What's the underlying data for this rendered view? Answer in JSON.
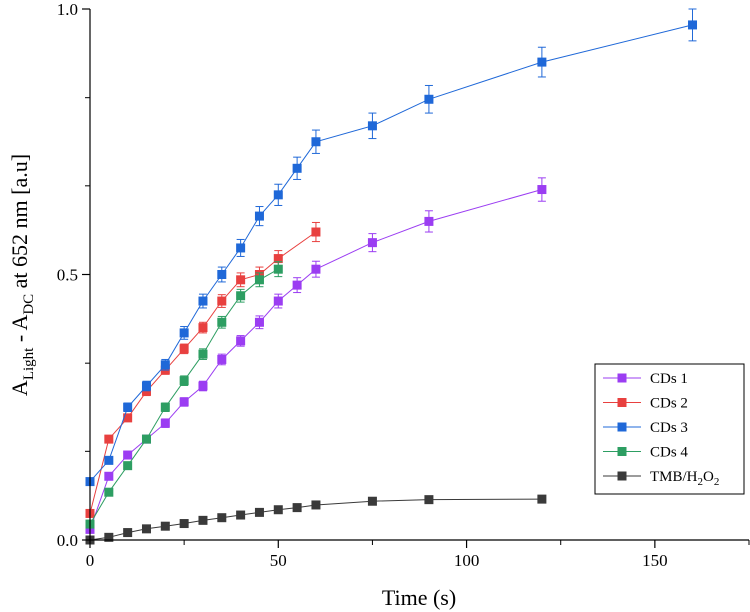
{
  "chart_data": {
    "type": "line",
    "title": "",
    "xlabel": "Time (s)",
    "ylabel": {
      "A1": "A",
      "sub1": "Light",
      "mid": " - A",
      "sub2": "DC",
      "tail": " at 652 nm [a.u]"
    },
    "xlim": [
      0,
      175
    ],
    "ylim": [
      0,
      1.0
    ],
    "x_ticks": [
      {
        "v": 0,
        "label": "0"
      },
      {
        "v": 50,
        "label": "50"
      },
      {
        "v": 100,
        "label": "100"
      },
      {
        "v": 150,
        "label": "150"
      }
    ],
    "x_minor": [
      25,
      75,
      125,
      175
    ],
    "y_ticks": [
      {
        "v": 0,
        "label": "0.0"
      },
      {
        "v": 0.5,
        "label": "0.5"
      },
      {
        "v": 1.0,
        "label": "1.0"
      }
    ],
    "y_minor": [
      0.167,
      0.333,
      0.667,
      0.833
    ],
    "legend_position": "bottom-right",
    "series": [
      {
        "name": "CDs 1",
        "color": "#9b3df2",
        "x": [
          0,
          5,
          10,
          15,
          20,
          25,
          30,
          35,
          40,
          45,
          50,
          55,
          60,
          75,
          90,
          120
        ],
        "y": [
          0.02,
          0.12,
          0.16,
          0.19,
          0.22,
          0.26,
          0.29,
          0.34,
          0.375,
          0.41,
          0.45,
          0.48,
          0.51,
          0.56,
          0.6,
          0.66
        ],
        "err": [
          0.005,
          0.006,
          0.007,
          0.007,
          0.008,
          0.008,
          0.009,
          0.01,
          0.01,
          0.012,
          0.013,
          0.014,
          0.015,
          0.017,
          0.02,
          0.022
        ]
      },
      {
        "name": "CDs 2",
        "color": "#e8403f",
        "x": [
          0,
          5,
          10,
          15,
          20,
          25,
          30,
          35,
          40,
          45,
          50,
          60
        ],
        "y": [
          0.05,
          0.19,
          0.23,
          0.28,
          0.32,
          0.36,
          0.4,
          0.45,
          0.49,
          0.5,
          0.53,
          0.58
        ],
        "err": [
          0.005,
          0.006,
          0.007,
          0.008,
          0.008,
          0.009,
          0.01,
          0.012,
          0.013,
          0.014,
          0.015,
          0.018
        ]
      },
      {
        "name": "CDs 3",
        "color": "#1f68d8",
        "x": [
          0,
          5,
          10,
          15,
          20,
          25,
          30,
          35,
          40,
          45,
          50,
          55,
          60,
          75,
          90,
          120,
          160
        ],
        "y": [
          0.11,
          0.15,
          0.25,
          0.29,
          0.33,
          0.39,
          0.45,
          0.5,
          0.55,
          0.61,
          0.65,
          0.7,
          0.75,
          0.78,
          0.83,
          0.9,
          0.97
        ],
        "err": [
          0.005,
          0.007,
          0.008,
          0.009,
          0.01,
          0.012,
          0.013,
          0.014,
          0.016,
          0.018,
          0.02,
          0.021,
          0.022,
          0.024,
          0.026,
          0.028,
          0.03
        ]
      },
      {
        "name": "CDs 4",
        "color": "#2d9e62",
        "x": [
          0,
          5,
          10,
          15,
          20,
          25,
          30,
          35,
          40,
          45,
          50
        ],
        "y": [
          0.03,
          0.09,
          0.14,
          0.19,
          0.25,
          0.3,
          0.35,
          0.41,
          0.46,
          0.49,
          0.51
        ],
        "err": [
          0.004,
          0.005,
          0.006,
          0.007,
          0.008,
          0.009,
          0.01,
          0.011,
          0.012,
          0.013,
          0.014
        ]
      },
      {
        "name": "TMB/H2O2",
        "color": "#3a3a3a",
        "legend": {
          "base": "TMB/H",
          "sub1": "2",
          "mid": "O",
          "sub2": "2"
        },
        "x": [
          0,
          5,
          10,
          15,
          20,
          25,
          30,
          35,
          40,
          45,
          50,
          55,
          60,
          75,
          90,
          120
        ],
        "y": [
          0.0,
          0.005,
          0.014,
          0.021,
          0.026,
          0.031,
          0.037,
          0.042,
          0.047,
          0.052,
          0.057,
          0.061,
          0.066,
          0.073,
          0.076,
          0.077
        ],
        "err": [
          0.002,
          0.002,
          0.002,
          0.002,
          0.002,
          0.002,
          0.002,
          0.002,
          0.002,
          0.002,
          0.002,
          0.002,
          0.003,
          0.003,
          0.003,
          0.003
        ]
      }
    ]
  }
}
